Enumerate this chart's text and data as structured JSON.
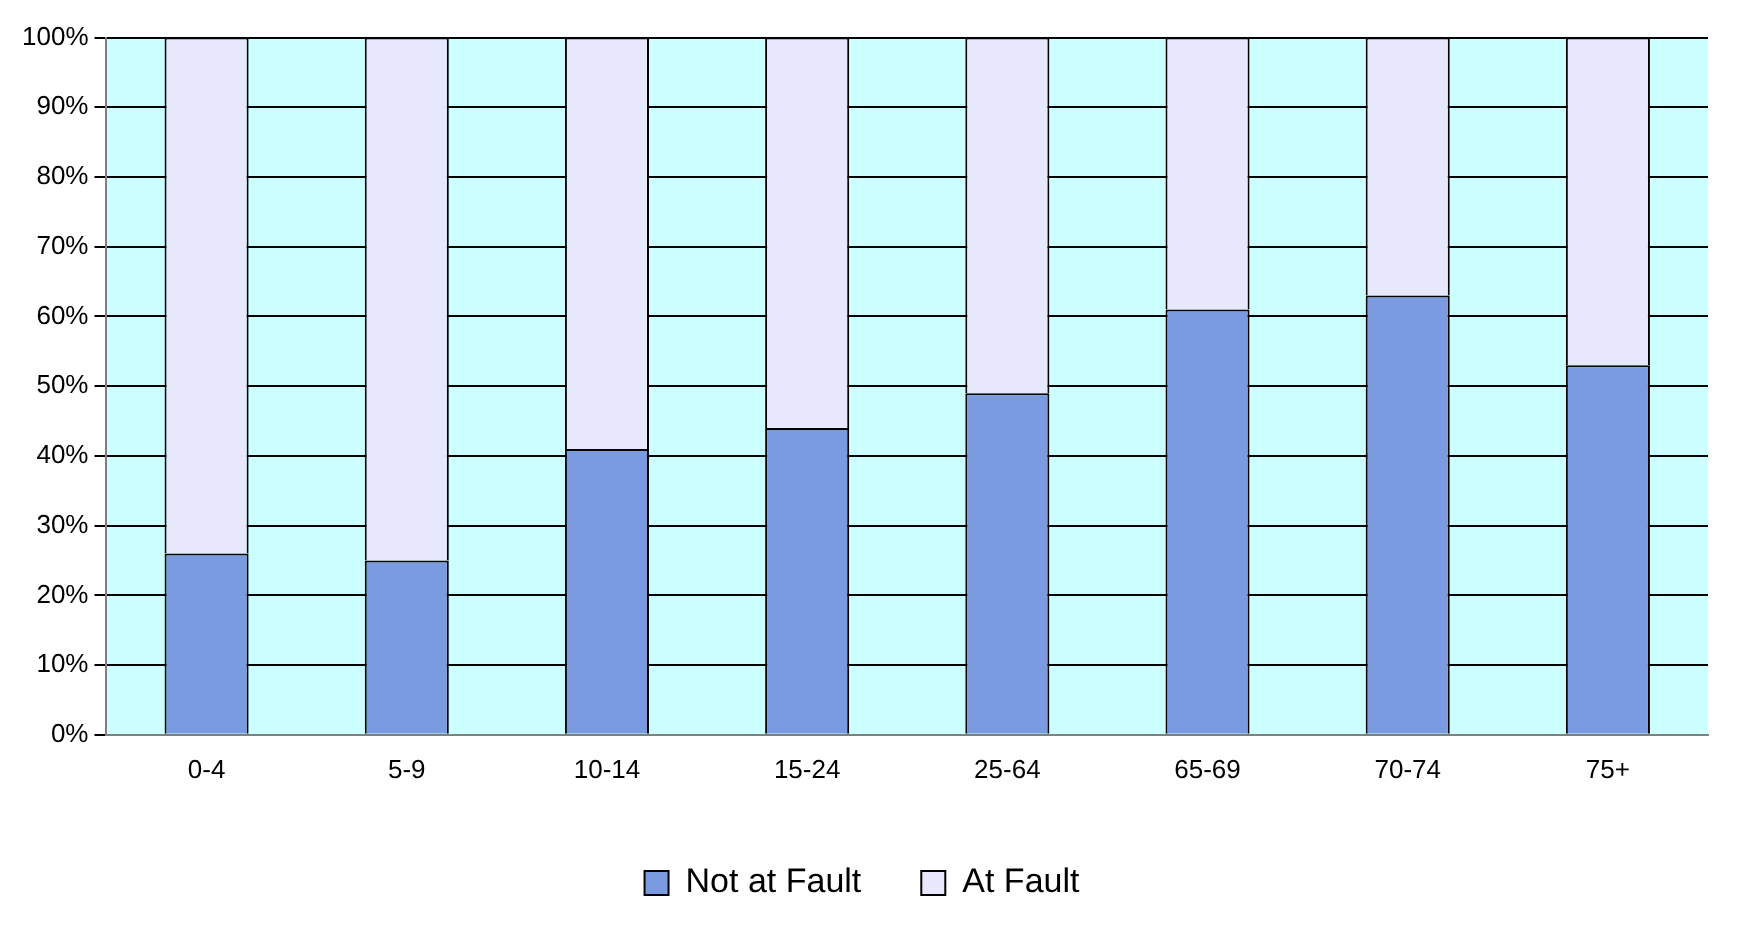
{
  "chart_data": {
    "type": "bar",
    "stacked": true,
    "categories": [
      "0-4",
      "5-9",
      "10-14",
      "15-24",
      "25-64",
      "65-69",
      "70-74",
      "75+"
    ],
    "series": [
      {
        "name": "Not at Fault",
        "color": "#7a9be0",
        "values": [
          26,
          25,
          41,
          44,
          49,
          61,
          63,
          53
        ]
      },
      {
        "name": "At Fault",
        "color": "#e8e8fc",
        "values": [
          74,
          75,
          59,
          56,
          51,
          39,
          37,
          47
        ]
      }
    ],
    "ylim": [
      0,
      100
    ],
    "yticks": [
      {
        "value": 0,
        "label": "0%"
      },
      {
        "value": 10,
        "label": "10%"
      },
      {
        "value": 20,
        "label": "20%"
      },
      {
        "value": 30,
        "label": "30%"
      },
      {
        "value": 40,
        "label": "40%"
      },
      {
        "value": 50,
        "label": "50%"
      },
      {
        "value": 60,
        "label": "60%"
      },
      {
        "value": 70,
        "label": "70%"
      },
      {
        "value": 80,
        "label": "80%"
      },
      {
        "value": 90,
        "label": "90%"
      },
      {
        "value": 100,
        "label": "100%"
      }
    ],
    "grid": "y",
    "legend": "bottom"
  }
}
